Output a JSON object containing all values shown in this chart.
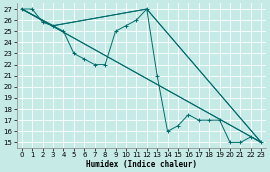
{
  "xlabel": "Humidex (Indice chaleur)",
  "bg_color": "#c6ebe7",
  "grid_color": "#ffffff",
  "line_color": "#006b6b",
  "xlim": [
    -0.5,
    23.5
  ],
  "ylim": [
    14.5,
    27.5
  ],
  "xticks": [
    0,
    1,
    2,
    3,
    4,
    5,
    6,
    7,
    8,
    9,
    10,
    11,
    12,
    13,
    14,
    15,
    16,
    17,
    18,
    19,
    20,
    21,
    22,
    23
  ],
  "yticks": [
    15,
    16,
    17,
    18,
    19,
    20,
    21,
    22,
    23,
    24,
    25,
    26,
    27
  ],
  "main_x": [
    0,
    1,
    2,
    3,
    4,
    5,
    6,
    7,
    8,
    9,
    10,
    11,
    12,
    13,
    14,
    15,
    16,
    17,
    18,
    19,
    20,
    21,
    22,
    23
  ],
  "main_y": [
    27,
    27,
    25.8,
    25.5,
    25,
    23,
    22.5,
    22,
    22,
    25,
    25.5,
    26,
    27,
    21,
    16,
    16.5,
    17.5,
    17,
    17,
    17,
    15,
    15,
    15.5,
    15
  ],
  "line1_x": [
    0,
    3,
    12,
    23
  ],
  "line1_y": [
    27,
    25.5,
    27,
    15
  ],
  "line2_x": [
    0,
    3,
    12,
    23
  ],
  "line2_y": [
    27,
    25.5,
    27,
    15
  ],
  "line3_x": [
    0,
    23
  ],
  "line3_y": [
    27,
    15
  ],
  "line4_x": [
    0,
    23
  ],
  "line4_y": [
    27,
    15
  ]
}
